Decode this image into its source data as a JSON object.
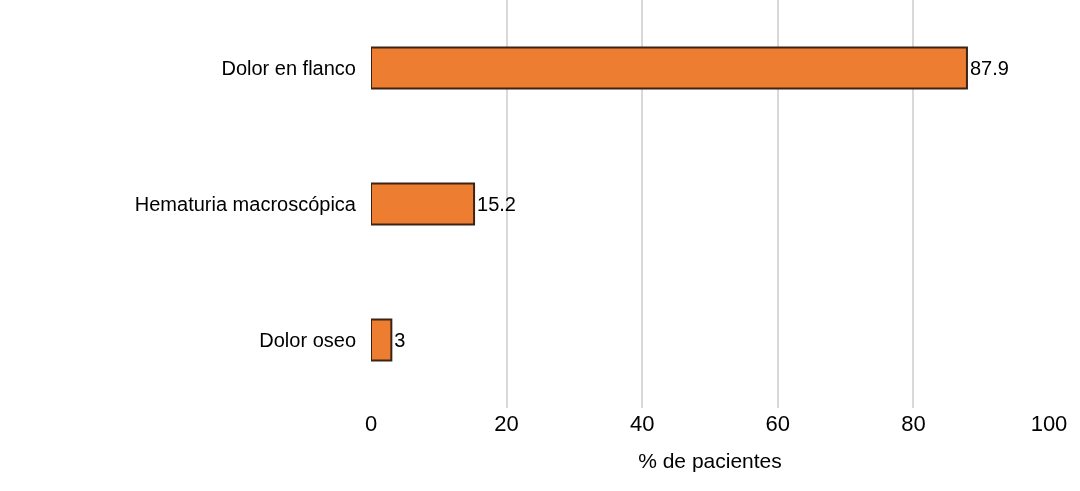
{
  "chart_data": {
    "type": "bar",
    "orientation": "horizontal",
    "xlabel": "% de pacientes",
    "categories": [
      "Dolor en flanco",
      "Hematuria macroscópica",
      "Dolor oseo"
    ],
    "values": [
      87.9,
      15.2,
      3
    ],
    "color": "#ed7d31",
    "xlim": [
      0,
      100
    ],
    "xticks": [
      0,
      20,
      40,
      60,
      80,
      100
    ],
    "grid": "x",
    "data_labels": true
  }
}
